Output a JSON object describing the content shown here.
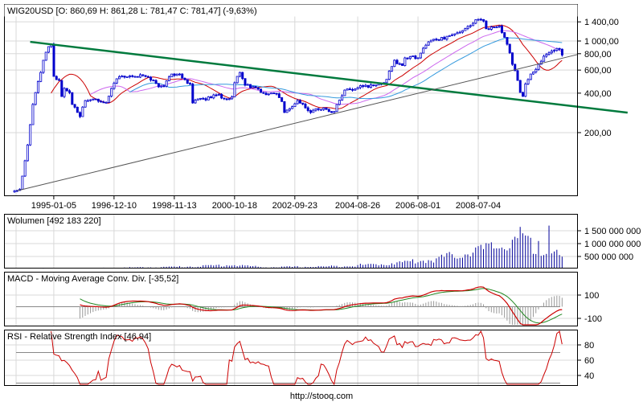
{
  "header": {
    "title": "WIG20USD [O: 860,69  H: 861,28  L: 781,47  C: 781,47] (-9,63%)"
  },
  "footer": {
    "url": "http://stooq.com"
  },
  "colors": {
    "candle": "#0000cc",
    "ma_fast": "#cc0000",
    "ma_mid": "#cc66ee",
    "ma_slow": "#3399dd",
    "trend_green": "#007a3d",
    "trend_gray": "#555555",
    "volume": "#000099",
    "macd": "#cc0000",
    "signal": "#228822",
    "hist": "#999999",
    "rsi": "#cc0000"
  },
  "chart_data": [
    {
      "type": "candlestick",
      "title": "WIG20USD",
      "interval": "monthly",
      "scale": "log",
      "ylim": [
        65,
        1700
      ],
      "x_ticks": [
        {
          "index": 15,
          "label": "1995-01-05"
        },
        {
          "index": 38,
          "label": "1996-12-10"
        },
        {
          "index": 61,
          "label": "1998-11-13"
        },
        {
          "index": 84,
          "label": "2000-10-18"
        },
        {
          "index": 107,
          "label": "2002-09-23"
        },
        {
          "index": 131,
          "label": "2004-08-26"
        },
        {
          "index": 154,
          "label": "2006-08-01"
        },
        {
          "index": 177,
          "label": "2008-07-04"
        }
      ],
      "y_ticks": [
        {
          "value": 1400,
          "label": "1 400,00"
        },
        {
          "value": 1000,
          "label": "1 000,00"
        },
        {
          "value": 800,
          "label": "800,00"
        },
        {
          "value": 600,
          "label": "600,00"
        },
        {
          "value": 400,
          "label": "400,00"
        },
        {
          "value": 200,
          "label": "200,00"
        }
      ],
      "n_bars": 210,
      "close_keyframes": [
        [
          0,
          72
        ],
        [
          2,
          74
        ],
        [
          4,
          122
        ],
        [
          5,
          161
        ],
        [
          6,
          230
        ],
        [
          7,
          328
        ],
        [
          8,
          404
        ],
        [
          10,
          576
        ],
        [
          11,
          713
        ],
        [
          13,
          906
        ],
        [
          14,
          945
        ],
        [
          15,
          537
        ],
        [
          17,
          500
        ],
        [
          18,
          377
        ],
        [
          19,
          435
        ],
        [
          21,
          404
        ],
        [
          22,
          328
        ],
        [
          24,
          285
        ],
        [
          25,
          265
        ],
        [
          27,
          351
        ],
        [
          28,
          351
        ],
        [
          31,
          360
        ],
        [
          35,
          340
        ],
        [
          37,
          435
        ],
        [
          39,
          515
        ],
        [
          42,
          530
        ],
        [
          45,
          535
        ],
        [
          48,
          553
        ],
        [
          51,
          530
        ],
        [
          53,
          500
        ],
        [
          55,
          447
        ],
        [
          57,
          452
        ],
        [
          60,
          560
        ],
        [
          63,
          560
        ],
        [
          67,
          470
        ],
        [
          68,
          337
        ],
        [
          70,
          362
        ],
        [
          73,
          355
        ],
        [
          76,
          388
        ],
        [
          78,
          392
        ],
        [
          80,
          362
        ],
        [
          83,
          375
        ],
        [
          84,
          480
        ],
        [
          86,
          576
        ],
        [
          88,
          460
        ],
        [
          91,
          450
        ],
        [
          93,
          430
        ],
        [
          94,
          405
        ],
        [
          97,
          395
        ],
        [
          100,
          395
        ],
        [
          102,
          345
        ],
        [
          103,
          285
        ],
        [
          105,
          305
        ],
        [
          108,
          351
        ],
        [
          110,
          330
        ],
        [
          113,
          285
        ],
        [
          116,
          300
        ],
        [
          119,
          300
        ],
        [
          122,
          290
        ],
        [
          123,
          328
        ],
        [
          126,
          422
        ],
        [
          129,
          422
        ],
        [
          133,
          450
        ],
        [
          136,
          463
        ],
        [
          139,
          472
        ],
        [
          142,
          510
        ],
        [
          145,
          713
        ],
        [
          146,
          670
        ],
        [
          148,
          650
        ],
        [
          149,
          743
        ],
        [
          152,
          770
        ],
        [
          154,
          743
        ],
        [
          156,
          881
        ],
        [
          159,
          1014
        ],
        [
          162,
          1014
        ],
        [
          165,
          1086
        ],
        [
          168,
          1135
        ],
        [
          171,
          1200
        ],
        [
          174,
          1310
        ],
        [
          177,
          1465
        ],
        [
          179,
          1420
        ],
        [
          180,
          1240
        ],
        [
          182,
          1280
        ],
        [
          185,
          1300
        ],
        [
          186,
          1160
        ],
        [
          188,
          945
        ],
        [
          190,
          664
        ],
        [
          191,
          593
        ],
        [
          192,
          500
        ],
        [
          193,
          405
        ],
        [
          194,
          378
        ],
        [
          195,
          470
        ],
        [
          197,
          560
        ],
        [
          198,
          580
        ],
        [
          200,
          664
        ],
        [
          202,
          765
        ],
        [
          203,
          790
        ],
        [
          206,
          850
        ],
        [
          208,
          866
        ],
        [
          209,
          781
        ]
      ],
      "moving_averages": [
        {
          "period": 15,
          "color_key": "ma_fast"
        },
        {
          "period": 30,
          "color_key": "ma_mid"
        },
        {
          "period": 45,
          "color_key": "ma_slow"
        }
      ],
      "trendlines": [
        {
          "name": "resistance",
          "color_key": "trend_green",
          "from": [
            6,
            985
          ],
          "to": [
            234,
            284
          ]
        },
        {
          "name": "support",
          "color_key": "trend_gray",
          "from": [
            1,
            72
          ],
          "to": [
            215,
            790
          ]
        }
      ],
      "last": {
        "open": 860.69,
        "high": 861.28,
        "low": 781.47,
        "close": 781.47,
        "change_pct": -9.63
      }
    },
    {
      "type": "bar",
      "title": "Wolumen [492 183 220]",
      "ylim": [
        0,
        2100000000
      ],
      "y_ticks": [
        {
          "value": 1500000000,
          "label": "1 500 000 000"
        },
        {
          "value": 1000000000,
          "label": "1 000 000 000"
        },
        {
          "value": 500000000,
          "label": "500 000 000"
        }
      ],
      "volume_keyframes_millions": [
        [
          0,
          40
        ],
        [
          30,
          45
        ],
        [
          55,
          80
        ],
        [
          70,
          120
        ],
        [
          78,
          150
        ],
        [
          84,
          170
        ],
        [
          95,
          80
        ],
        [
          120,
          110
        ],
        [
          140,
          200
        ],
        [
          160,
          380
        ],
        [
          175,
          700
        ],
        [
          185,
          900
        ],
        [
          195,
          1000
        ],
        [
          209,
          500
        ]
      ],
      "volume_overrides_millions": {
        "182": 1050,
        "190": 1150,
        "193": 1650,
        "194": 1400,
        "196": 1300,
        "200": 1100,
        "204": 1700,
        "205": 620,
        "209": 492
      }
    },
    {
      "type": "line",
      "title": "MACD - Moving Average Conv. Div. [-35,52]",
      "params": {
        "fast": 12,
        "slow": 26,
        "signal": 9
      },
      "y_ticks": [
        {
          "value": 100,
          "label": "100"
        },
        {
          "value": -100,
          "label": "-100"
        }
      ],
      "ylim": [
        -180,
        270
      ]
    },
    {
      "type": "line",
      "title": "RSI - Relative Strength Index [46,94]",
      "params": {
        "period": 14
      },
      "ylim": [
        25,
        100
      ],
      "levels": [
        70,
        30
      ],
      "y_ticks": [
        {
          "value": 80,
          "label": "80"
        },
        {
          "value": 60,
          "label": "60"
        },
        {
          "value": 40,
          "label": "40"
        }
      ]
    }
  ]
}
